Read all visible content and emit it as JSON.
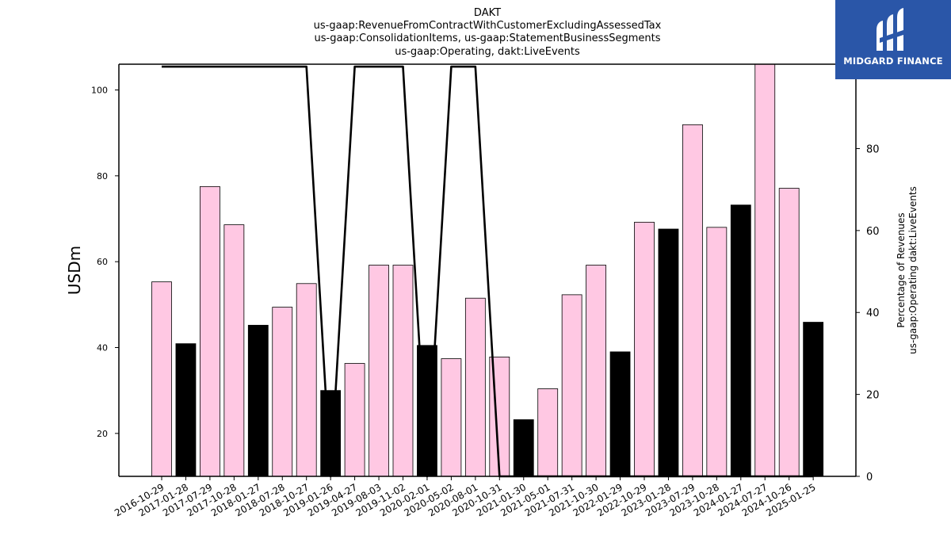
{
  "title_lines": [
    "DAKT",
    "us-gaap:RevenueFromContractWithCustomerExcludingAssessedTax",
    "us-gaap:ConsolidationItems, us-gaap:StatementBusinessSegments",
    "us-gaap:Operating, dakt:LiveEvents"
  ],
  "logo": {
    "text": "MIDGARD FINANCE",
    "bg_color": "#2a56a8"
  },
  "chart_data": {
    "type": "bar",
    "categories": [
      "2016-10-29",
      "2017-01-28",
      "2017-07-29",
      "2017-10-28",
      "2018-01-27",
      "2018-07-28",
      "2018-10-27",
      "2019-01-26",
      "2019-04-27",
      "2019-08-03",
      "2019-11-02",
      "2020-02-01",
      "2020-05-02",
      "2020-08-01",
      "2020-10-31",
      "2021-01-30",
      "2021-05-01",
      "2021-07-31",
      "2021-10-30",
      "2022-01-29",
      "2022-10-29",
      "2023-01-28",
      "2023-07-29",
      "2023-10-28",
      "2024-01-27",
      "2024-07-27",
      "2024-10-26",
      "2025-01-25"
    ],
    "values": [
      55.3,
      40.9,
      77.5,
      68.6,
      45.2,
      49.4,
      54.9,
      30.0,
      36.3,
      59.2,
      59.2,
      40.5,
      37.4,
      51.5,
      37.8,
      23.2,
      30.4,
      52.3,
      59.2,
      39.0,
      69.2,
      67.6,
      91.9,
      68.0,
      73.2,
      106.0,
      77.1,
      45.9
    ],
    "bar_colors": [
      "#ffc8e3",
      "#000000",
      "#ffc8e3",
      "#ffc8e3",
      "#000000",
      "#ffc8e3",
      "#ffc8e3",
      "#000000",
      "#ffc8e3",
      "#ffc8e3",
      "#ffc8e3",
      "#000000",
      "#ffc8e3",
      "#ffc8e3",
      "#ffc8e3",
      "#000000",
      "#ffc8e3",
      "#ffc8e3",
      "#ffc8e3",
      "#000000",
      "#ffc8e3",
      "#000000",
      "#ffc8e3",
      "#ffc8e3",
      "#000000",
      "#ffc8e3",
      "#ffc8e3",
      "#000000"
    ],
    "ylabel": "USDm",
    "ylim": [
      10,
      106
    ],
    "yticks": [
      20,
      40,
      60,
      80,
      100
    ],
    "y2label_lines": [
      "Percentage of Revenues",
      "us-gaap:Operating dakt:LiveEvents"
    ],
    "y2lim": [
      0,
      100.6
    ],
    "y2ticks": [
      0,
      20,
      40,
      60,
      80,
      100
    ],
    "line_values": [
      100,
      100,
      100,
      100,
      100,
      100,
      100,
      0,
      100,
      100,
      100,
      0,
      100,
      100,
      0,
      0,
      0,
      0,
      0,
      0,
      0,
      0,
      0,
      0,
      0,
      0,
      0,
      0
    ],
    "line_color": "#000000",
    "grid": false,
    "legend": "none"
  }
}
